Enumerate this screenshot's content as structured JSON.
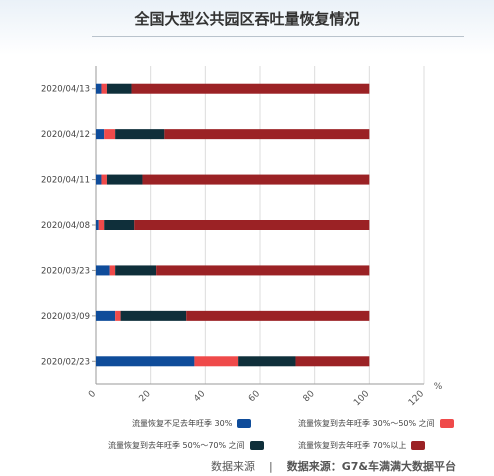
{
  "source": {
    "prefix": "数据来源",
    "separator": "|",
    "text": "数据来源：G7&车满满大数据平台"
  },
  "chart_data": {
    "type": "bar",
    "orientation": "horizontal",
    "stacked": true,
    "title": "全国大型公共园区吞吐量恢复情况",
    "categories": [
      "2020/04/13",
      "2020/04/12",
      "2020/04/11",
      "2020/04/08",
      "2020/03/23",
      "2020/03/09",
      "2020/02/23"
    ],
    "series": [
      {
        "name": "流量恢复不足去年旺季 30%",
        "color": "#0f4c9a",
        "values": [
          2,
          3,
          2,
          1,
          5,
          7,
          36
        ]
      },
      {
        "name": "流量恢复到去年旺季 30%～50% 之间",
        "color": "#ef4a4a",
        "values": [
          2,
          4,
          2,
          2,
          2,
          2,
          16
        ]
      },
      {
        "name": "流量恢复到去年旺季 50%～70% 之间",
        "color": "#0f2f3a",
        "values": [
          9,
          18,
          13,
          11,
          15,
          24,
          21
        ]
      },
      {
        "name": "流量恢复到去年旺季 70%以上",
        "color": "#9b2225",
        "values": [
          87,
          75,
          83,
          86,
          78,
          67,
          27
        ]
      }
    ],
    "xlim": [
      0,
      120
    ],
    "xticks": [
      0,
      20,
      40,
      60,
      80,
      100,
      120
    ],
    "xunit": "%",
    "grid": "vertical",
    "legend": "bottom"
  }
}
